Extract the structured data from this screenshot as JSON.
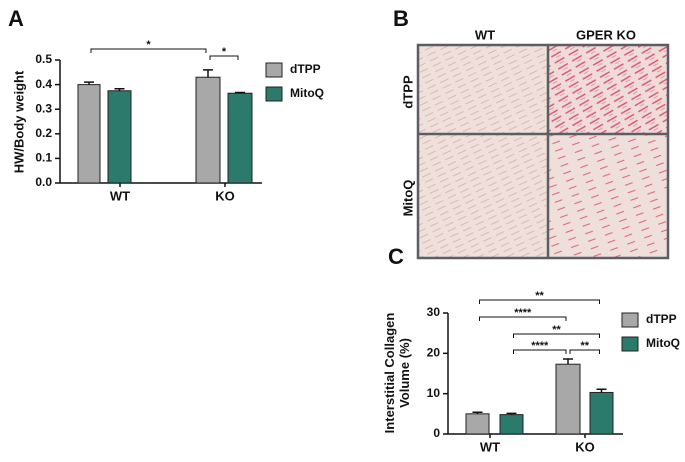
{
  "chart_data": [
    {
      "type": "bar",
      "panel_label": "A",
      "ylabel": [
        "HW/Body weight"
      ],
      "categories": [
        "WT",
        "KO"
      ],
      "series": [
        {
          "name": "dTPP",
          "color": "#a8a8a8",
          "values": [
            0.4,
            0.43
          ],
          "errors": [
            0.01,
            0.03
          ]
        },
        {
          "name": "MitoQ",
          "color": "#2b7a6c",
          "values": [
            0.375,
            0.365
          ],
          "errors": [
            0.008,
            0.003
          ]
        }
      ],
      "ylim": [
        0,
        0.5
      ],
      "yticks": [
        {
          "value": 0,
          "label": "0.0"
        },
        0.1,
        0.2,
        0.3,
        0.4,
        0.5
      ],
      "annotations": [
        "*",
        "*"
      ]
    },
    {
      "type": "bar",
      "panel_label": "C",
      "ylabel": [
        "Interstitial Collagen",
        "Volume (%)"
      ],
      "categories": [
        "WT",
        "KO"
      ],
      "series": [
        {
          "name": "dTPP",
          "color": "#a8a8a8",
          "values": [
            5.0,
            17.3
          ],
          "errors": [
            0.4,
            1.3
          ]
        },
        {
          "name": "MitoQ",
          "color": "#2b7a6c",
          "values": [
            4.8,
            10.3
          ],
          "errors": [
            0.3,
            0.8
          ]
        }
      ],
      "ylim": [
        0,
        30
      ],
      "yticks": [
        0,
        10,
        20,
        30
      ],
      "annotations": [
        "**",
        "****",
        "**",
        "****",
        "**"
      ]
    }
  ],
  "panel_b": {
    "panel_label": "B",
    "columns": [
      "WT",
      "GPER KO"
    ],
    "rows": [
      "dTPP",
      "MitoQ"
    ]
  }
}
